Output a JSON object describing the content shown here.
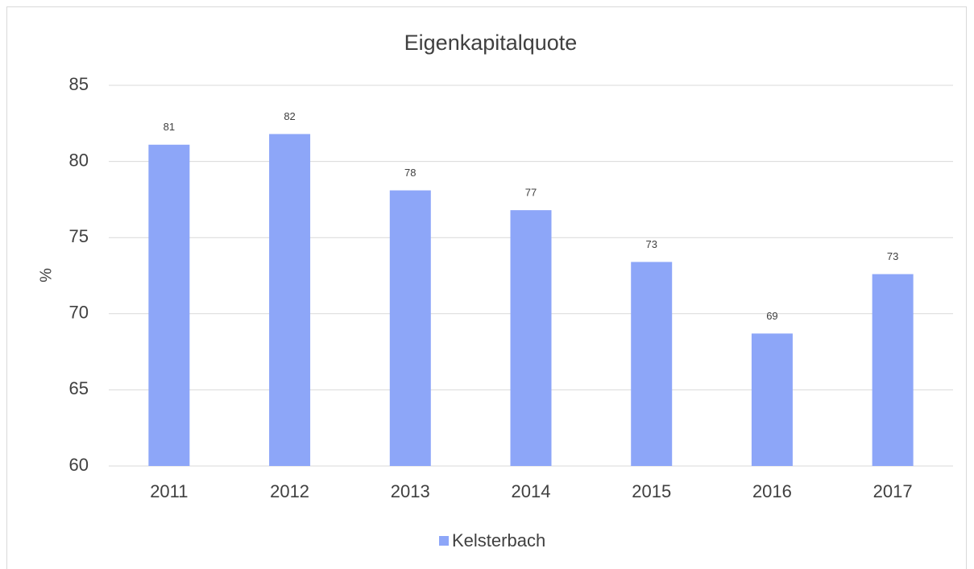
{
  "chart_data": {
    "type": "bar",
    "title": "Eigenkapitalquote",
    "y_label": "%",
    "categories": [
      "2011",
      "2012",
      "2013",
      "2014",
      "2015",
      "2016",
      "2017"
    ],
    "series": [
      {
        "name": "Kelsterbach",
        "color": "#8da6f8",
        "values": [
          81.1,
          81.8,
          78.1,
          76.8,
          73.4,
          68.7,
          72.6
        ],
        "value_labels": [
          "81",
          "82",
          "78",
          "77",
          "73",
          "69",
          "73"
        ]
      }
    ],
    "ylim": [
      60,
      85
    ],
    "yticks": [
      60,
      65,
      70,
      75,
      80,
      85
    ],
    "grid": true,
    "legend": "bottom"
  }
}
